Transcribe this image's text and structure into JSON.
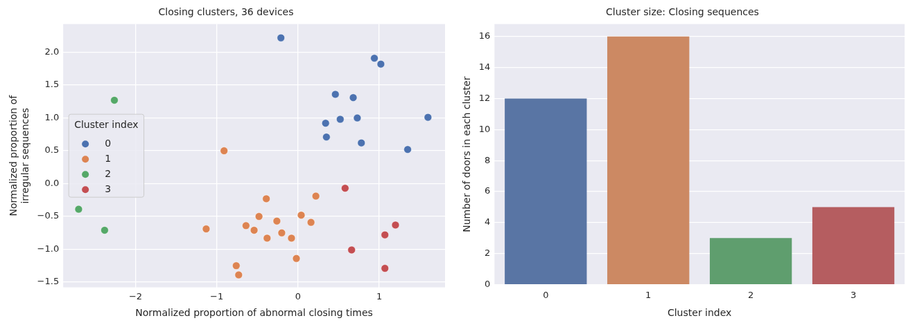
{
  "chart_data": [
    {
      "type": "scatter",
      "title": "Closing clusters, 36 devices",
      "xlabel": "Normalized proportion of abnormal closing times",
      "ylabel": "Normalized proportion of\nirregular sequences",
      "legend_title": "Cluster index",
      "legend": "center left",
      "grid": true,
      "marker": "circle",
      "xlim": [
        -2.89,
        1.81
      ],
      "xticks": [
        {
          "value": -2,
          "label": "−2"
        },
        {
          "value": -1,
          "label": "−1"
        },
        0,
        1
      ],
      "ylim": [
        -1.58,
        2.43
      ],
      "yticks": [
        {
          "value": -1.5,
          "label": "−1.5"
        },
        {
          "value": -1,
          "label": "−1.0"
        },
        {
          "value": -0.5,
          "label": "−0.5"
        },
        {
          "value": 0,
          "label": "0.0"
        },
        0.5,
        {
          "value": 1,
          "label": "1.0"
        },
        1.5,
        {
          "value": 2,
          "label": "2.0"
        }
      ],
      "series": [
        {
          "name": "0",
          "color": "#4c72b0",
          "x": [
            -0.21,
            0.94,
            1.02,
            0.46,
            0.68,
            0.34,
            0.52,
            0.73,
            1.6,
            0.35,
            0.78,
            1.35
          ],
          "values": [
            2.22,
            1.91,
            1.82,
            1.36,
            1.31,
            0.92,
            0.98,
            1.0,
            1.01,
            0.71,
            0.62,
            0.52
          ]
        },
        {
          "name": "1",
          "color": "#dd8452",
          "x": [
            -0.91,
            -1.13,
            -0.39,
            0.22,
            -0.48,
            0.04,
            -0.26,
            0.16,
            -0.64,
            -0.54,
            -0.2,
            -0.38,
            -0.08,
            -0.02,
            -0.76,
            -0.73
          ],
          "values": [
            0.5,
            -0.69,
            -0.23,
            -0.19,
            -0.5,
            -0.48,
            -0.57,
            -0.59,
            -0.64,
            -0.71,
            -0.75,
            -0.83,
            -0.83,
            -1.14,
            -1.25,
            -1.39
          ]
        },
        {
          "name": "2",
          "color": "#55a868",
          "x": [
            -2.26,
            -2.7,
            -2.38
          ],
          "values": [
            1.27,
            -0.39,
            -0.71
          ]
        },
        {
          "name": "3",
          "color": "#c44e52",
          "x": [
            0.58,
            1.2,
            1.07,
            0.66,
            1.07
          ],
          "values": [
            -0.07,
            -0.63,
            -0.78,
            -1.01,
            -1.29
          ]
        }
      ]
    },
    {
      "type": "bar",
      "title": "Cluster size: Closing sequences",
      "xlabel": "Cluster index",
      "ylabel": "Number of doors in each cluster",
      "grid": "y",
      "categories": [
        "0",
        "1",
        "2",
        "3"
      ],
      "values": [
        12,
        16,
        3,
        5
      ],
      "colors": [
        "#5975a4",
        "#cc8963",
        "#5f9e6e",
        "#b55d60"
      ],
      "ylim": [
        0,
        16.8
      ],
      "yticks": [
        0,
        2,
        4,
        6,
        8,
        10,
        12,
        14,
        16
      ]
    }
  ]
}
